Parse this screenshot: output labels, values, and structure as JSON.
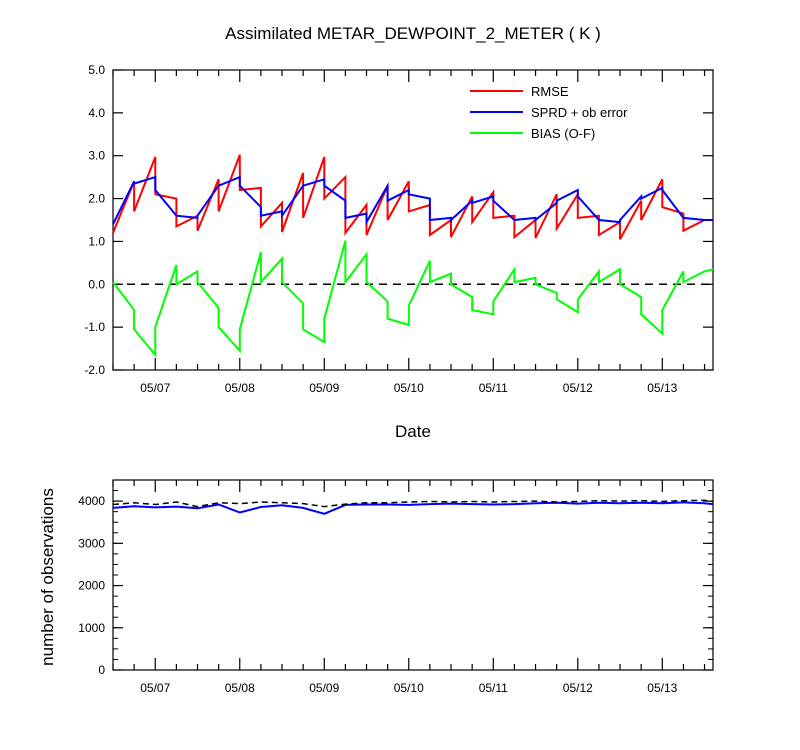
{
  "chart_data": [
    {
      "type": "line",
      "title": "Assimilated METAR_DEWPOINT_2_METER ( K )",
      "xlabel": "Date",
      "ylabel": "",
      "x_range": [
        0,
        7.1
      ],
      "ylim": [
        -2.0,
        5.0
      ],
      "yticks": [
        "5.0",
        "4.0",
        "3.0",
        "2.0",
        "1.0",
        "0.0",
        "-1.0",
        "-2.0"
      ],
      "ytick_values": [
        5,
        4,
        3,
        2,
        1,
        0,
        -1,
        -2
      ],
      "categories": [
        "05/07",
        "05/08",
        "05/09",
        "05/10",
        "05/11",
        "05/12",
        "05/13"
      ],
      "category_x": [
        0.5,
        1.5,
        2.5,
        3.5,
        4.5,
        5.5,
        6.5
      ],
      "reference_line": 0.0,
      "legend_position": "top-right",
      "series": [
        {
          "name": "RMSE",
          "color": "#ff0000",
          "x": [
            0.0,
            0.25,
            0.25,
            0.5,
            0.5,
            0.75,
            0.75,
            1.0,
            1.0,
            1.25,
            1.25,
            1.5,
            1.5,
            1.75,
            1.75,
            2.0,
            2.0,
            2.25,
            2.25,
            2.5,
            2.5,
            2.75,
            2.75,
            3.0,
            3.0,
            3.25,
            3.25,
            3.5,
            3.5,
            3.75,
            3.75,
            4.0,
            4.0,
            4.25,
            4.25,
            4.5,
            4.5,
            4.75,
            4.75,
            5.0,
            5.0,
            5.25,
            5.25,
            5.5,
            5.5,
            5.75,
            5.75,
            6.0,
            6.0,
            6.25,
            6.25,
            6.5,
            6.5,
            6.75,
            6.75,
            7.0,
            7.0,
            7.1
          ],
          "y": [
            1.2,
            2.4,
            1.7,
            2.97,
            2.1,
            2.0,
            1.35,
            1.6,
            1.25,
            2.45,
            1.7,
            3.02,
            2.2,
            2.25,
            1.35,
            1.9,
            1.22,
            2.6,
            1.55,
            2.97,
            2.0,
            2.5,
            1.2,
            1.85,
            1.15,
            2.3,
            1.5,
            2.4,
            1.7,
            1.85,
            1.15,
            1.5,
            1.1,
            2.05,
            1.45,
            2.15,
            1.55,
            1.6,
            1.1,
            1.5,
            1.08,
            2.1,
            1.3,
            2.1,
            1.55,
            1.6,
            1.15,
            1.45,
            1.05,
            1.95,
            1.5,
            2.45,
            1.8,
            1.65,
            1.25,
            1.5,
            1.5,
            1.5
          ]
        },
        {
          "name": "SPRD + ob error",
          "color": "#0000ff",
          "x": [
            0.0,
            0.25,
            0.25,
            0.5,
            0.5,
            0.75,
            0.75,
            1.0,
            1.0,
            1.25,
            1.25,
            1.5,
            1.5,
            1.75,
            1.75,
            2.0,
            2.0,
            2.25,
            2.25,
            2.5,
            2.5,
            2.75,
            2.75,
            3.0,
            3.0,
            3.25,
            3.25,
            3.5,
            3.5,
            3.75,
            3.75,
            4.0,
            4.0,
            4.25,
            4.25,
            4.5,
            4.5,
            4.75,
            4.75,
            5.0,
            5.0,
            5.25,
            5.25,
            5.5,
            5.5,
            5.75,
            5.75,
            6.0,
            6.0,
            6.25,
            6.25,
            6.5,
            6.5,
            6.75,
            6.75,
            7.0,
            7.0,
            7.1
          ],
          "y": [
            1.4,
            2.4,
            2.35,
            2.5,
            2.2,
            1.6,
            1.6,
            1.55,
            1.6,
            2.3,
            2.3,
            2.5,
            2.3,
            1.8,
            1.6,
            1.7,
            1.6,
            2.3,
            2.3,
            2.45,
            2.3,
            1.95,
            1.55,
            1.65,
            1.45,
            2.3,
            1.95,
            2.2,
            2.1,
            2.0,
            1.5,
            1.55,
            1.5,
            1.95,
            1.9,
            2.05,
            1.95,
            1.5,
            1.5,
            1.55,
            1.5,
            1.9,
            1.95,
            2.2,
            2.05,
            1.5,
            1.5,
            1.45,
            1.5,
            2.05,
            2.0,
            2.25,
            2.2,
            1.55,
            1.55,
            1.5,
            1.5,
            1.5
          ]
        },
        {
          "name": "BIAS (O-F)",
          "color": "#00ff00",
          "x": [
            0.0,
            0.25,
            0.25,
            0.5,
            0.5,
            0.75,
            0.75,
            1.0,
            1.0,
            1.25,
            1.25,
            1.5,
            1.5,
            1.75,
            1.75,
            2.0,
            2.0,
            2.25,
            2.25,
            2.5,
            2.5,
            2.75,
            2.75,
            3.0,
            3.0,
            3.25,
            3.25,
            3.5,
            3.5,
            3.75,
            3.75,
            4.0,
            4.0,
            4.25,
            4.25,
            4.5,
            4.5,
            4.75,
            4.75,
            5.0,
            5.0,
            5.25,
            5.25,
            5.5,
            5.5,
            5.75,
            5.75,
            6.0,
            6.0,
            6.25,
            6.25,
            6.5,
            6.5,
            6.75,
            6.75,
            7.0,
            7.0,
            7.1
          ],
          "y": [
            0.05,
            -0.6,
            -1.05,
            -1.65,
            -1.0,
            0.45,
            0.0,
            0.3,
            0.05,
            -0.55,
            -1.0,
            -1.55,
            -1.05,
            0.75,
            0.05,
            0.6,
            0.05,
            -0.45,
            -1.05,
            -1.35,
            -0.8,
            1.02,
            0.05,
            0.7,
            0.05,
            -0.4,
            -0.8,
            -0.95,
            -0.5,
            0.55,
            0.05,
            0.25,
            0.0,
            -0.3,
            -0.6,
            -0.7,
            -0.4,
            0.35,
            0.05,
            0.15,
            0.0,
            -0.2,
            -0.35,
            -0.65,
            -0.35,
            0.3,
            0.05,
            0.35,
            0.0,
            -0.3,
            -0.7,
            -1.15,
            -0.6,
            0.3,
            0.05,
            0.3,
            0.3,
            0.35
          ]
        }
      ]
    },
    {
      "type": "line",
      "title": "",
      "xlabel": "",
      "ylabel": "number of observations",
      "x_range": [
        0,
        7.1
      ],
      "ylim": [
        0,
        4500
      ],
      "yticks": [
        "4000",
        "3000",
        "2000",
        "1000",
        "0"
      ],
      "ytick_values": [
        4000,
        3000,
        2000,
        1000,
        0
      ],
      "categories": [
        "05/07",
        "05/08",
        "05/09",
        "05/10",
        "05/11",
        "05/12",
        "05/13"
      ],
      "category_x": [
        0.5,
        1.5,
        2.5,
        3.5,
        4.5,
        5.5,
        6.5
      ],
      "series": [
        {
          "name": "",
          "color": "#0000ff",
          "style": "solid",
          "x": [
            0.0,
            0.25,
            0.5,
            0.75,
            1.0,
            1.25,
            1.5,
            1.75,
            2.0,
            2.25,
            2.5,
            2.75,
            3.0,
            3.25,
            3.5,
            3.75,
            4.0,
            4.25,
            4.5,
            4.75,
            5.0,
            5.25,
            5.5,
            5.75,
            6.0,
            6.25,
            6.5,
            6.75,
            7.0,
            7.1
          ],
          "y": [
            3840,
            3880,
            3850,
            3870,
            3830,
            3920,
            3730,
            3860,
            3900,
            3840,
            3700,
            3910,
            3920,
            3920,
            3910,
            3930,
            3940,
            3930,
            3920,
            3930,
            3950,
            3960,
            3940,
            3960,
            3950,
            3960,
            3950,
            3970,
            3950,
            3930
          ]
        },
        {
          "name": "",
          "color": "#000000",
          "style": "dashed",
          "x": [
            0.0,
            0.25,
            0.5,
            0.75,
            1.0,
            1.25,
            1.5,
            1.75,
            2.0,
            2.25,
            2.5,
            2.75,
            3.0,
            3.25,
            3.5,
            3.75,
            4.0,
            4.25,
            4.5,
            4.75,
            5.0,
            5.25,
            5.5,
            5.75,
            6.0,
            6.25,
            6.5,
            6.75,
            7.0,
            7.1
          ],
          "y": [
            3920,
            3960,
            3920,
            3980,
            3870,
            3960,
            3940,
            3980,
            3960,
            3940,
            3870,
            3930,
            3960,
            3960,
            3980,
            3990,
            3980,
            3990,
            3980,
            3990,
            4000,
            3980,
            3990,
            4010,
            4000,
            4010,
            3990,
            4010,
            4020,
            3990
          ]
        }
      ]
    }
  ]
}
